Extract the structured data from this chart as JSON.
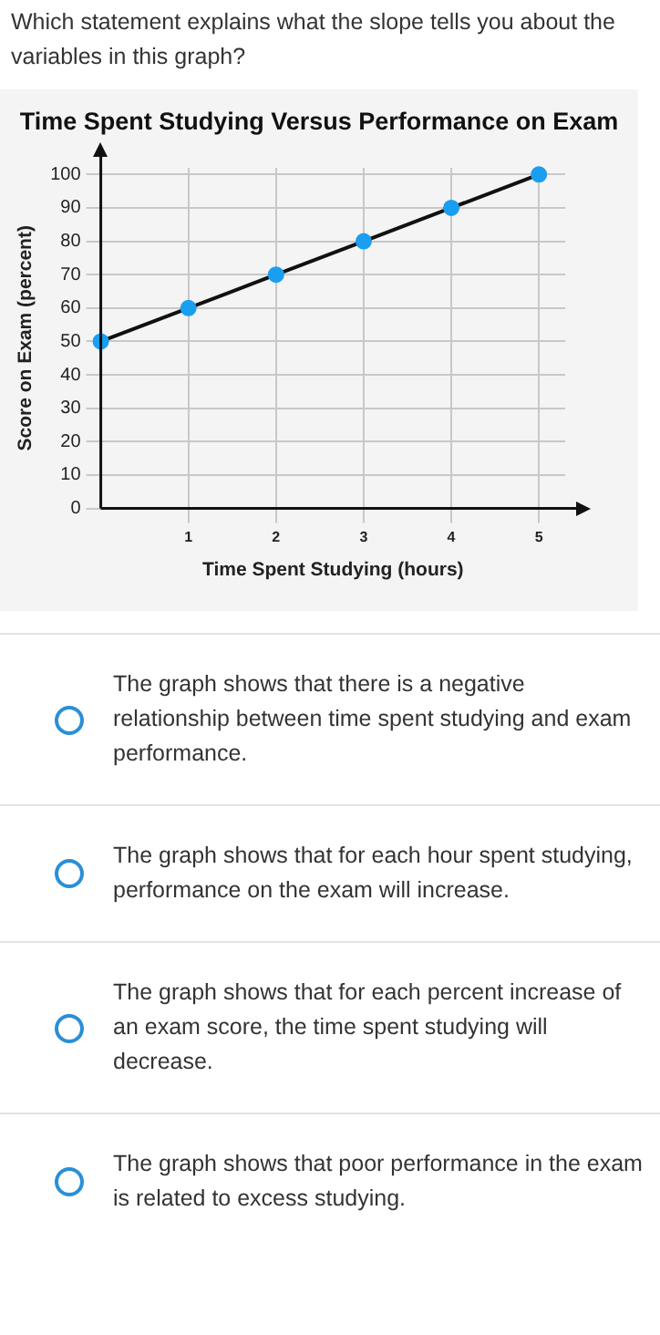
{
  "chart_data": {
    "type": "line",
    "title": "Time Spent Studying Versus Performance on Exam",
    "xlabel": "Time Spent Studying (hours)",
    "ylabel": "Score on Exam (percent)",
    "x": [
      0,
      1,
      2,
      3,
      4,
      5
    ],
    "series": [
      {
        "color": "#1a9ef0",
        "values": [
          50,
          60,
          70,
          80,
          90,
          100
        ]
      }
    ],
    "xlim": [
      0,
      5.3
    ],
    "ylim": [
      0,
      102
    ],
    "xticks": [
      1,
      2,
      3,
      4,
      5
    ],
    "yticks": [
      0,
      10,
      20,
      30,
      40,
      50,
      60,
      70,
      80,
      90,
      100
    ],
    "grid": true,
    "legend": false,
    "marker": "circle",
    "line_style": "solid",
    "annotations": [
      "Which statement explains what the slope tells you about the variables in this graph?",
      "The graph shows that there is a negative relationship between time spent studying and exam performance.",
      "The graph shows that for each hour spent studying, performance on the exam will increase.",
      "The graph shows that for each percent increase of an exam score, the time spent studying will decrease.",
      "The graph shows that poor performance in the exam is related to excess studying."
    ]
  }
}
